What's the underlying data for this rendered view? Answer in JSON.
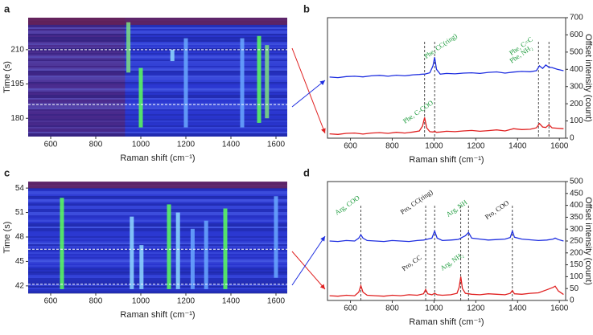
{
  "chart_data": [
    {
      "type": "heatmap",
      "panel": "a",
      "xlabel": "Raman shift (cm⁻¹)",
      "ylabel": "Time (s)",
      "xlim": [
        500,
        1650
      ],
      "ylim": [
        172,
        224
      ],
      "xticks": [
        600,
        800,
        1000,
        1200,
        1400,
        1600
      ],
      "yticks": [
        180,
        195,
        210
      ],
      "hlines": [
        210,
        186
      ],
      "streaks": [
        {
          "x": 945,
          "y0": 200,
          "y1": 222,
          "color": "#7fe07f"
        },
        {
          "x": 1000,
          "y0": 176,
          "y1": 202,
          "color": "#5cff5c"
        },
        {
          "x": 1140,
          "y0": 205,
          "y1": 210,
          "color": "#8fd8ff"
        },
        {
          "x": 1200,
          "y0": 176,
          "y1": 215,
          "color": "#6aa8ff"
        },
        {
          "x": 1450,
          "y0": 176,
          "y1": 215,
          "color": "#6aa8ff"
        },
        {
          "x": 1525,
          "y0": 178,
          "y1": 216,
          "color": "#5cff5c"
        },
        {
          "x": 1560,
          "y0": 180,
          "y1": 212,
          "color": "#7fe07f"
        }
      ]
    },
    {
      "type": "line",
      "panel": "b",
      "xlabel": "Raman shift (cm⁻¹)",
      "ylabel": "Offset intensity (count)",
      "xlim": [
        490,
        1630
      ],
      "ylim": [
        0,
        700
      ],
      "xticks": [
        600,
        800,
        1000,
        1200,
        1400,
        1600
      ],
      "yticks": [
        0,
        100,
        200,
        300,
        400,
        500,
        600,
        700
      ],
      "x": [
        500,
        540,
        580,
        620,
        660,
        700,
        740,
        780,
        820,
        860,
        900,
        930,
        945,
        955,
        965,
        980,
        995,
        1003,
        1012,
        1030,
        1060,
        1100,
        1140,
        1180,
        1220,
        1260,
        1300,
        1340,
        1380,
        1420,
        1460,
        1490,
        1505,
        1520,
        1535,
        1550,
        1565,
        1590,
        1620
      ],
      "series": [
        {
          "color": "#1f2fe0",
          "values": [
            355,
            352,
            358,
            360,
            356,
            362,
            365,
            360,
            366,
            362,
            368,
            370,
            372,
            372,
            375,
            380,
            420,
            470,
            400,
            372,
            376,
            374,
            378,
            380,
            376,
            382,
            385,
            378,
            384,
            388,
            386,
            392,
            420,
            405,
            425,
            412,
            410,
            400,
            392
          ]
        },
        {
          "color": "#e02020",
          "values": [
            25,
            22,
            28,
            30,
            24,
            30,
            32,
            28,
            34,
            30,
            36,
            42,
            70,
            120,
            60,
            38,
            36,
            40,
            34,
            36,
            40,
            38,
            42,
            45,
            40,
            44,
            48,
            42,
            55,
            50,
            52,
            60,
            85,
            65,
            62,
            78,
            60,
            58,
            55
          ]
        }
      ],
      "vlines": [
        955,
        1003,
        1500,
        1550
      ],
      "annotations": [
        {
          "text": "Phe, CC(ring)",
          "color": "#1a9a3a"
        },
        {
          "text": "Phe, C-COO",
          "color": "#1a9a3a"
        },
        {
          "text": "Phe, C=C",
          "color": "#1a9a3a"
        },
        {
          "text": "Phe, NH₂",
          "color": "#1a9a3a"
        }
      ]
    },
    {
      "type": "heatmap",
      "panel": "c",
      "xlabel": "Raman shift (cm⁻¹)",
      "ylabel": "Time (s)",
      "xlim": [
        500,
        1650
      ],
      "ylim": [
        41.1,
        54.8
      ],
      "xticks": [
        600,
        800,
        1000,
        1200,
        1400,
        1600
      ],
      "yticks": [
        42,
        45,
        48,
        51,
        54
      ],
      "hlines": [
        46.5,
        42.2
      ],
      "streaks": [
        {
          "x": 650,
          "y0": 41.6,
          "y1": 52.8,
          "color": "#5cff5c"
        },
        {
          "x": 960,
          "y0": 41.6,
          "y1": 50.5,
          "color": "#8fd8ff"
        },
        {
          "x": 1003,
          "y0": 41.6,
          "y1": 47,
          "color": "#8fd8ff"
        },
        {
          "x": 1125,
          "y0": 41.6,
          "y1": 52,
          "color": "#5cff5c"
        },
        {
          "x": 1165,
          "y0": 41.6,
          "y1": 51,
          "color": "#8fd8ff"
        },
        {
          "x": 1230,
          "y0": 41.6,
          "y1": 49,
          "color": "#6aa8ff"
        },
        {
          "x": 1290,
          "y0": 41.6,
          "y1": 50,
          "color": "#6aa8ff"
        },
        {
          "x": 1375,
          "y0": 41.6,
          "y1": 51.5,
          "color": "#5cff5c"
        },
        {
          "x": 1600,
          "y0": 43,
          "y1": 53,
          "color": "#6aa8ff"
        }
      ]
    },
    {
      "type": "line",
      "panel": "d",
      "xlabel": "Raman shift (cm⁻¹)",
      "ylabel": "Offset intensity (count)",
      "xlim": [
        490,
        1630
      ],
      "ylim": [
        0,
        500
      ],
      "xticks": [
        600,
        800,
        1000,
        1200,
        1400,
        1600
      ],
      "yticks": [
        0,
        50,
        100,
        150,
        200,
        250,
        300,
        350,
        400,
        450,
        500
      ],
      "x": [
        500,
        540,
        580,
        620,
        640,
        650,
        660,
        680,
        720,
        760,
        800,
        840,
        880,
        920,
        950,
        960,
        970,
        990,
        1003,
        1015,
        1040,
        1080,
        1110,
        1120,
        1128,
        1136,
        1150,
        1165,
        1180,
        1220,
        1260,
        1300,
        1340,
        1365,
        1375,
        1385,
        1420,
        1460,
        1500,
        1540,
        1570,
        1580,
        1595,
        1620
      ],
      "series": [
        {
          "color": "#1f2fe0",
          "values": [
            250,
            248,
            252,
            250,
            262,
            276,
            262,
            252,
            250,
            248,
            252,
            250,
            248,
            252,
            254,
            256,
            258,
            262,
            292,
            262,
            252,
            254,
            256,
            258,
            262,
            266,
            272,
            286,
            262,
            258,
            254,
            256,
            258,
            265,
            292,
            266,
            258,
            255,
            252,
            254,
            258,
            262,
            256,
            250
          ]
        },
        {
          "color": "#e02020",
          "values": [
            20,
            18,
            22,
            20,
            35,
            62,
            35,
            22,
            20,
            18,
            22,
            20,
            24,
            22,
            28,
            46,
            28,
            24,
            30,
            24,
            22,
            24,
            30,
            55,
            100,
            50,
            30,
            28,
            26,
            24,
            28,
            26,
            24,
            30,
            42,
            28,
            26,
            30,
            32,
            45,
            55,
            60,
            40,
            25
          ]
        }
      ],
      "vlines": [
        650,
        960,
        1003,
        1128,
        1165,
        1375
      ],
      "annotations": [
        {
          "text": "Arg, COO",
          "color": "#1a9a3a"
        },
        {
          "text": "Pro, CC(ring)",
          "color": "#111111"
        },
        {
          "text": "Arg, NH",
          "color": "#1a9a3a"
        },
        {
          "text": "Pro, COO",
          "color": "#111111"
        },
        {
          "text": "Pro, CC",
          "color": "#111111"
        },
        {
          "text": "Arg, NH₂",
          "color": "#1a9a3a"
        }
      ]
    }
  ]
}
